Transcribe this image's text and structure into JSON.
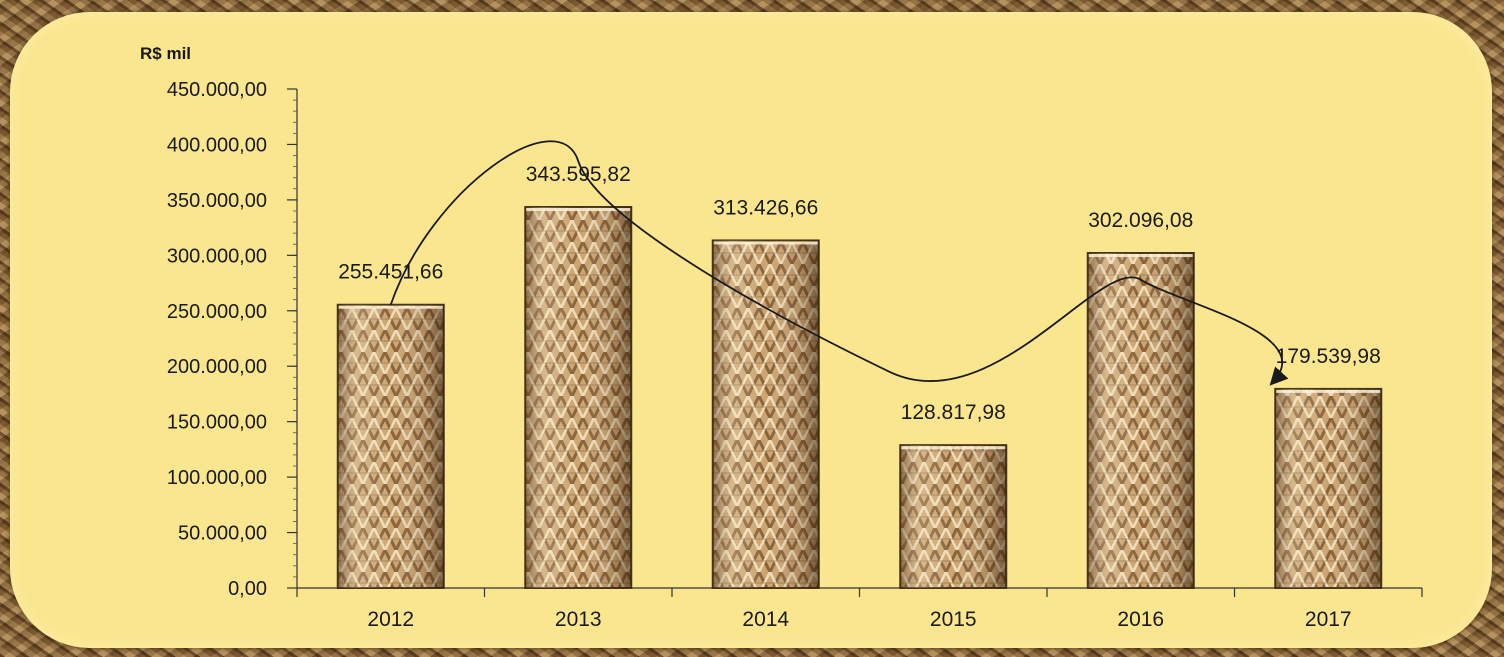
{
  "chart_data": {
    "type": "bar",
    "ylabel": "R$ mil",
    "categories": [
      "2012",
      "2013",
      "2014",
      "2015",
      "2016",
      "2017"
    ],
    "values": [
      255451.66,
      343595.82,
      313426.66,
      128817.98,
      302096.08,
      179539.98
    ],
    "value_labels": [
      "255.451,66",
      "343.595,82",
      "313.426,66",
      "128.817,98",
      "302.096,08",
      "179.539,98"
    ],
    "ylim": [
      0,
      450000
    ],
    "yticks": [
      0,
      50000,
      100000,
      150000,
      200000,
      250000,
      300000,
      350000,
      400000,
      450000
    ],
    "ytick_labels": [
      "0,00",
      "50.000,00",
      "100.000,00",
      "150.000,00",
      "200.000,00",
      "250.000,00",
      "300.000,00",
      "350.000,00",
      "400.000,00",
      "450.000,00"
    ],
    "trend_arrow": true,
    "grid": false,
    "legend": "none"
  },
  "colors": {
    "panel": "#f9e68f",
    "bar_light": "#e2c79a",
    "bar_dark": "#8a6136",
    "text": "#1a1a1a",
    "axis": "#333333"
  }
}
